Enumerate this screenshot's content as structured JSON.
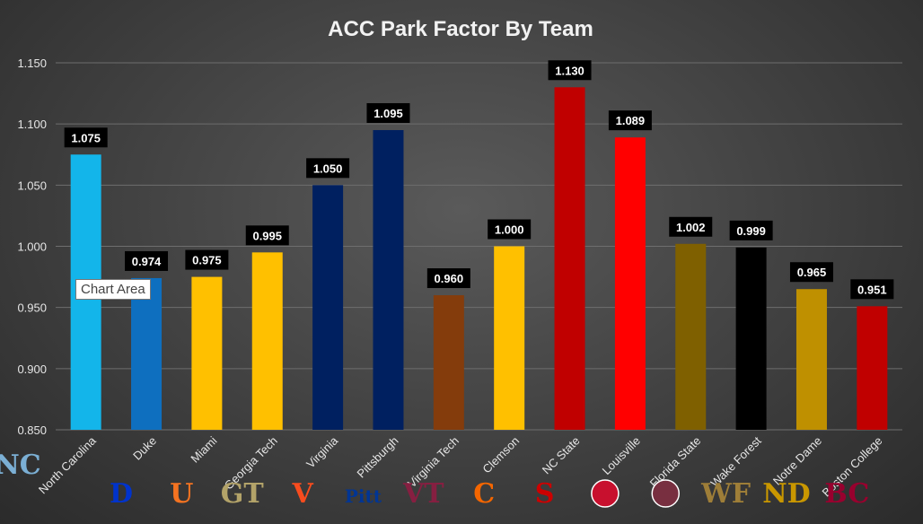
{
  "chart_data": {
    "type": "bar",
    "title": "ACC Park Factor By Team",
    "xlabel": "",
    "ylabel": "",
    "ylim": [
      0.85,
      1.15
    ],
    "yticks": [
      "0.850",
      "0.900",
      "0.950",
      "1.000",
      "1.050",
      "1.100",
      "1.150"
    ],
    "grid": true,
    "categories": [
      "North Carolina",
      "Duke",
      "Miami",
      "Georgia Tech",
      "Virginia",
      "Pittsburgh",
      "Virginia Tech",
      "Clemson",
      "NC State",
      "Louisville",
      "Florida State",
      "Wake Forest",
      "Notre Dame",
      "Boston College"
    ],
    "values": [
      1.075,
      0.974,
      0.975,
      0.995,
      1.05,
      1.095,
      0.96,
      1.0,
      1.13,
      1.089,
      1.002,
      0.999,
      0.965,
      0.951
    ],
    "value_labels": [
      "1.075",
      "0.974",
      "0.975",
      "0.995",
      "1.050",
      "1.095",
      "0.960",
      "1.000",
      "1.130",
      "1.089",
      "1.002",
      "0.999",
      "0.965",
      "0.951"
    ],
    "colors": [
      "#13B5EA",
      "#0E6FBF",
      "#FFC000",
      "#FFC000",
      "#002060",
      "#002060",
      "#843C0C",
      "#FFC000",
      "#C00000",
      "#FF0000",
      "#7F6000",
      "#000000",
      "#BF9000",
      "#C00000"
    ]
  },
  "logos": [
    {
      "team": "North Carolina",
      "icon": "nc-interlock-logo",
      "color": "#7BAFD4",
      "text": "NC"
    },
    {
      "team": "Duke",
      "icon": "duke-d-logo",
      "color": "#0033cc",
      "text": "D"
    },
    {
      "team": "Miami",
      "icon": "miami-u-logo",
      "color": "#F47321",
      "text": "U"
    },
    {
      "team": "Georgia Tech",
      "icon": "gt-logo",
      "color": "#B3A369",
      "text": "GT"
    },
    {
      "team": "Virginia",
      "icon": "virginia-sabres-logo",
      "color": "#F84C1E",
      "text": "V"
    },
    {
      "team": "Pittsburgh",
      "icon": "pitt-script-logo",
      "color": "#003594",
      "text": "Pitt"
    },
    {
      "team": "Virginia Tech",
      "icon": "vt-logo",
      "color": "#861F41",
      "text": "VT"
    },
    {
      "team": "Clemson",
      "icon": "clemson-c-logo",
      "color": "#F56600",
      "text": "C"
    },
    {
      "team": "NC State",
      "icon": "ncstate-s-logo",
      "color": "#CC0000",
      "text": "S"
    },
    {
      "team": "Louisville",
      "icon": "cardinal-bird-logo",
      "color": "#C8102E",
      "text": ""
    },
    {
      "team": "Florida State",
      "icon": "seminole-head-logo",
      "color": "#782F40",
      "text": ""
    },
    {
      "team": "Wake Forest",
      "icon": "wf-logo",
      "color": "#9E7E38",
      "text": "WF"
    },
    {
      "team": "Notre Dame",
      "icon": "nd-logo",
      "color": "#C99700",
      "text": "ND"
    },
    {
      "team": "Boston College",
      "icon": "bc-logo",
      "color": "#98002E",
      "text": "BC"
    }
  ],
  "tooltip": {
    "text": "Chart Area"
  }
}
